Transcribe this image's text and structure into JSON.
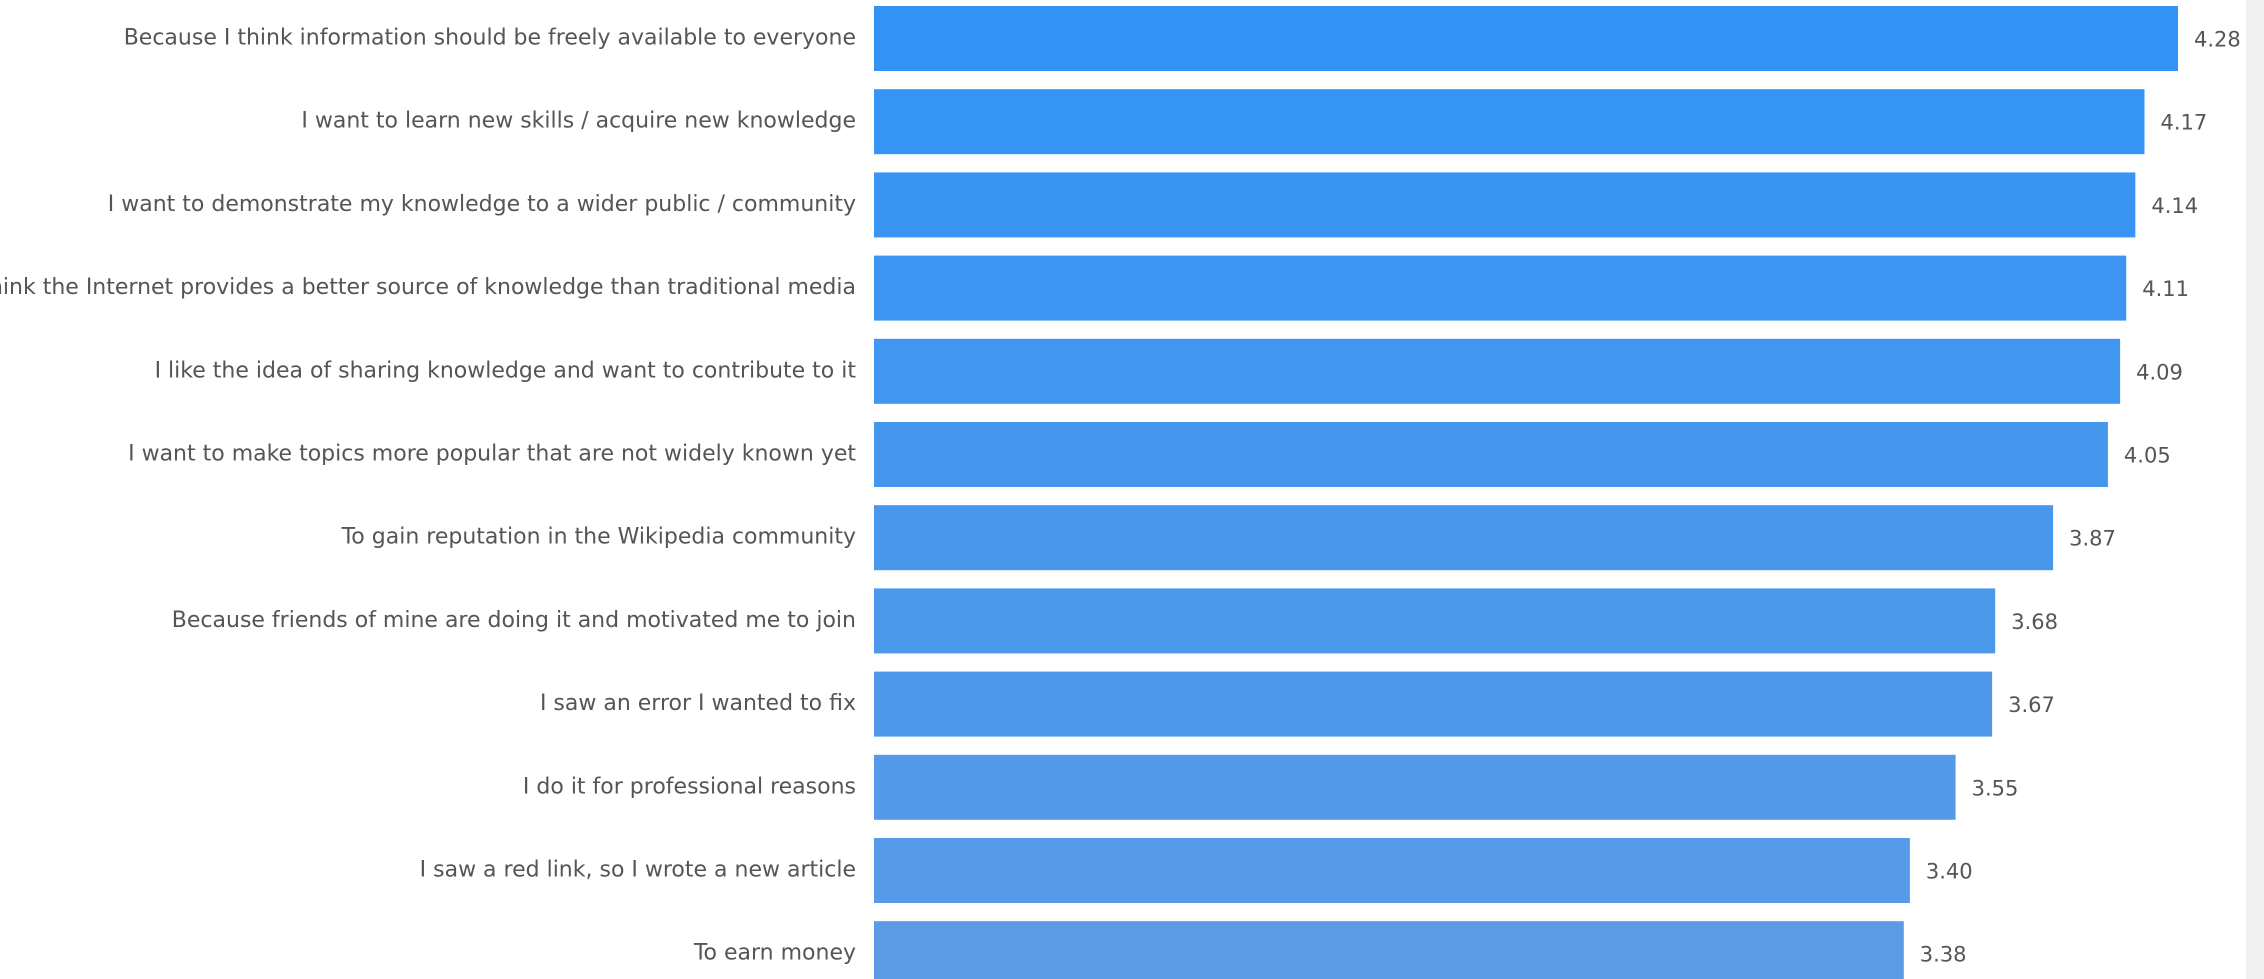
{
  "chart_data": {
    "type": "bar",
    "orientation": "horizontal",
    "title": "",
    "xlabel": "",
    "ylabel": "",
    "categories": [
      "Because I think information should be freely available to everyone",
      "I want to learn new skills / acquire new knowledge",
      "I want to demonstrate my knowledge to a wider public / community",
      "I think the Internet provides a better source of knowledge than traditional media",
      "I like the idea of sharing knowledge and want to contribute to it",
      "I want to make topics more popular that are not widely known yet",
      "To gain reputation in the Wikipedia community",
      "Because friends of mine are doing it and motivated me to join",
      "I saw an error I wanted to fix",
      "I do it for professional reasons",
      "I saw a red link, so I wrote a new article",
      "To earn money"
    ],
    "values": [
      4.28,
      4.17,
      4.14,
      4.11,
      4.09,
      4.05,
      3.87,
      3.68,
      3.67,
      3.55,
      3.4,
      3.38
    ],
    "value_labels": [
      "4.28",
      "4.17",
      "4.14",
      "4.11",
      "4.09",
      "4.05",
      "3.87",
      "3.68",
      "3.67",
      "3.55",
      "3.40",
      "3.38"
    ],
    "xlim": [
      0,
      4.28
    ],
    "grid": false,
    "legend": "none",
    "colors": {
      "bar_top": "#3293f5",
      "bar_bottom": "#5b9be6",
      "label": "#555555"
    }
  }
}
